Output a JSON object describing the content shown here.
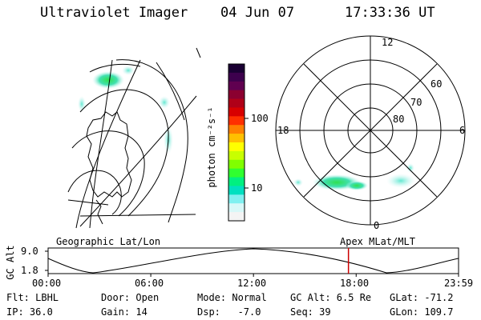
{
  "header": {
    "instrument": "Ultraviolet Imager",
    "date": "04 Jun 07",
    "time": "17:33:36 UT"
  },
  "colorbar": {
    "label": "photon cm⁻²s⁻¹",
    "ticks": [
      "100",
      "10"
    ],
    "colors": [
      "#1a0033",
      "#3d004d",
      "#600050",
      "#8b0030",
      "#b00018",
      "#d80000",
      "#ff3000",
      "#ff8000",
      "#ffc000",
      "#ffff00",
      "#c8ff00",
      "#80ff00",
      "#30ff30",
      "#00f080",
      "#00e0c0",
      "#80f0f0",
      "#d8f8f8",
      "#f4f4f4"
    ]
  },
  "polar": {
    "mlt_labels": {
      "top": "12",
      "left": "18",
      "right": "6",
      "bottom": "0"
    },
    "lat_labels": [
      "60",
      "70",
      "80"
    ]
  },
  "panels": {
    "left_label": "Geographic Lat/Lon",
    "right_label": "Apex MLat/MLT"
  },
  "timeline": {
    "axis_title": "GC Alt",
    "y_top": "9.0",
    "y_bottom": "1.8",
    "x_ticks": [
      "00:00",
      "06:00",
      "12:00",
      "18:00",
      "23:59"
    ],
    "marker_time": "17:33",
    "marker_color": "#cc0000"
  },
  "info": {
    "flt": "Flt: LBHL",
    "door": "Door: Open",
    "mode": "Mode: Normal",
    "gc_alt": "GC Alt: 6.5 Re",
    "glat": "GLat: -71.2",
    "ip": "IP: 36.0",
    "gain": "Gain: 14",
    "dsp": "Dsp:   -7.0",
    "seq": "Seq: 39",
    "glon": "GLon: 109.7"
  }
}
